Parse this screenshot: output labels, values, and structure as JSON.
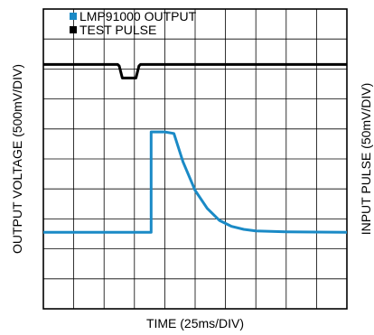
{
  "chart_data": {
    "type": "line",
    "xlabel": "TIME (25ms/DIV)",
    "ylabel_left": "OUTPUT VOLTAGE (500mV/DIV)",
    "ylabel_right": "INPUT PULSE (50mV/DIV)",
    "x_divisions": 10,
    "y_divisions": 10,
    "grid": true,
    "xlim": [
      0,
      10
    ],
    "ylim": [
      0,
      10
    ],
    "legend_position": "top-left",
    "series": [
      {
        "name": "LMP91000 OUTPUT",
        "color": "#1a8ac6",
        "x": [
          0,
          3.35,
          3.55,
          3.55,
          4.0,
          4.3,
          4.6,
          5.0,
          5.4,
          5.8,
          6.2,
          6.6,
          7.0,
          7.5,
          8.0,
          10
        ],
        "y": [
          2.55,
          2.55,
          2.55,
          5.9,
          5.9,
          5.85,
          4.9,
          3.95,
          3.35,
          2.95,
          2.75,
          2.65,
          2.6,
          2.58,
          2.57,
          2.55
        ]
      },
      {
        "name": "TEST PULSE",
        "color": "#000000",
        "x": [
          0,
          2.45,
          2.5,
          2.6,
          3.05,
          3.15,
          3.2,
          10
        ],
        "y": [
          8.15,
          8.15,
          8.1,
          7.7,
          7.7,
          8.1,
          8.15,
          8.15
        ]
      }
    ]
  }
}
